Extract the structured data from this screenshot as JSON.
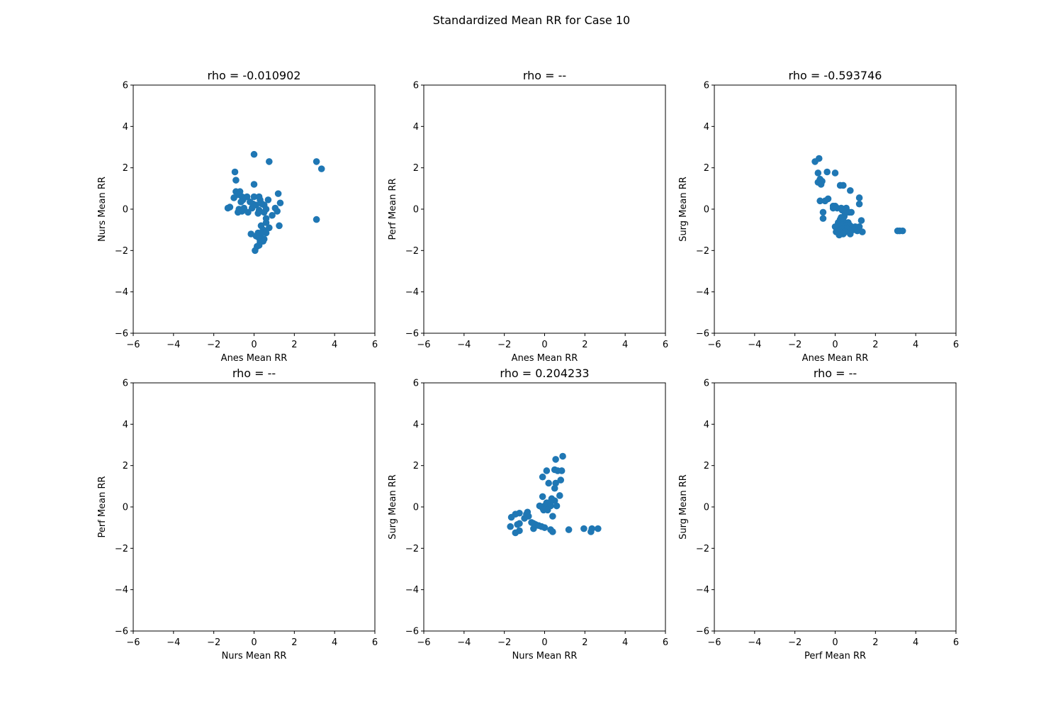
{
  "figure": {
    "title": "Standardized Mean RR for Case 10"
  },
  "colors": {
    "marker": "#1f77b4",
    "axes": "#000000",
    "background": "#ffffff"
  },
  "chart_data": [
    {
      "type": "scatter",
      "title": "rho = -0.010902",
      "xlabel": "Anes Mean RR",
      "ylabel": "Nurs Mean RR",
      "xlim": [
        -6,
        6
      ],
      "ylim": [
        -6,
        6
      ],
      "xticks": [
        "−6",
        "−4",
        "−2",
        "0",
        "2",
        "4",
        "6"
      ],
      "yticks": [
        "−6",
        "−4",
        "−2",
        "0",
        "2",
        "4",
        "6"
      ],
      "grid": false,
      "points": [
        [
          0.0,
          2.65
        ],
        [
          0.75,
          2.3
        ],
        [
          3.1,
          2.3
        ],
        [
          3.35,
          1.95
        ],
        [
          -0.95,
          1.8
        ],
        [
          -0.9,
          1.4
        ],
        [
          0.0,
          1.2
        ],
        [
          -0.9,
          0.85
        ],
        [
          -0.7,
          0.85
        ],
        [
          -0.8,
          0.7
        ],
        [
          -1.0,
          0.55
        ],
        [
          -0.6,
          0.6
        ],
        [
          -0.35,
          0.6
        ],
        [
          0.0,
          0.6
        ],
        [
          0.25,
          0.6
        ],
        [
          -0.55,
          0.45
        ],
        [
          -0.65,
          0.35
        ],
        [
          0.3,
          0.45
        ],
        [
          0.7,
          0.45
        ],
        [
          1.2,
          0.75
        ],
        [
          -0.2,
          0.35
        ],
        [
          0.4,
          0.25
        ],
        [
          1.3,
          0.3
        ],
        [
          -0.05,
          0.25
        ],
        [
          0.1,
          0.2
        ],
        [
          0.5,
          0.2
        ],
        [
          1.05,
          0.05
        ],
        [
          -1.2,
          0.1
        ],
        [
          -1.3,
          0.05
        ],
        [
          -0.75,
          0.0
        ],
        [
          -0.5,
          0.05
        ],
        [
          -0.1,
          0.05
        ],
        [
          0.25,
          -0.05
        ],
        [
          0.6,
          0.0
        ],
        [
          -0.6,
          -0.1
        ],
        [
          -0.3,
          -0.15
        ],
        [
          -0.8,
          -0.15
        ],
        [
          0.2,
          -0.2
        ],
        [
          0.5,
          -0.15
        ],
        [
          1.15,
          -0.1
        ],
        [
          0.9,
          -0.3
        ],
        [
          0.6,
          -0.45
        ],
        [
          0.6,
          -0.65
        ],
        [
          3.1,
          -0.5
        ],
        [
          0.35,
          -0.8
        ],
        [
          0.75,
          -0.9
        ],
        [
          1.25,
          -0.8
        ],
        [
          0.45,
          -1.0
        ],
        [
          0.55,
          -1.1
        ],
        [
          0.6,
          -1.15
        ],
        [
          -0.15,
          -1.2
        ],
        [
          0.2,
          -1.15
        ],
        [
          0.35,
          -1.2
        ],
        [
          0.1,
          -1.3
        ],
        [
          0.25,
          -1.4
        ],
        [
          0.35,
          -1.45
        ],
        [
          0.5,
          -1.45
        ],
        [
          0.3,
          -1.6
        ],
        [
          0.45,
          -1.55
        ],
        [
          0.15,
          -1.8
        ],
        [
          0.05,
          -2.0
        ],
        [
          0.25,
          -1.75
        ]
      ]
    },
    {
      "type": "scatter",
      "title": "rho = --",
      "xlabel": "Anes Mean RR",
      "ylabel": "Perf Mean RR",
      "xlim": [
        -6,
        6
      ],
      "ylim": [
        -6,
        6
      ],
      "xticks": [
        "−6",
        "−4",
        "−2",
        "0",
        "2",
        "4",
        "6"
      ],
      "yticks": [
        "−6",
        "−4",
        "−2",
        "0",
        "2",
        "4",
        "6"
      ],
      "grid": false,
      "points": []
    },
    {
      "type": "scatter",
      "title": "rho = -0.593746",
      "xlabel": "Anes Mean RR",
      "ylabel": "Surg Mean RR",
      "xlim": [
        -6,
        6
      ],
      "ylim": [
        -6,
        6
      ],
      "xticks": [
        "−6",
        "−4",
        "−2",
        "0",
        "2",
        "4",
        "6"
      ],
      "yticks": [
        "−6",
        "−4",
        "−2",
        "0",
        "2",
        "4",
        "6"
      ],
      "grid": false,
      "points": [
        [
          -0.8,
          2.45
        ],
        [
          -1.0,
          2.3
        ],
        [
          -0.85,
          1.75
        ],
        [
          -0.4,
          1.8
        ],
        [
          0.0,
          1.75
        ],
        [
          -0.75,
          1.45
        ],
        [
          -0.85,
          1.3
        ],
        [
          -0.65,
          1.35
        ],
        [
          -0.7,
          1.2
        ],
        [
          0.25,
          1.15
        ],
        [
          0.4,
          1.15
        ],
        [
          0.75,
          0.9
        ],
        [
          1.2,
          0.55
        ],
        [
          -0.35,
          0.5
        ],
        [
          -0.5,
          0.4
        ],
        [
          -0.75,
          0.4
        ],
        [
          1.2,
          0.25
        ],
        [
          -0.1,
          0.15
        ],
        [
          0.0,
          0.15
        ],
        [
          0.1,
          0.05
        ],
        [
          -0.1,
          0.05
        ],
        [
          0.3,
          0.05
        ],
        [
          0.55,
          0.05
        ],
        [
          0.35,
          -0.05
        ],
        [
          -0.6,
          -0.15
        ],
        [
          0.7,
          -0.15
        ],
        [
          0.5,
          -0.2
        ],
        [
          0.8,
          -0.15
        ],
        [
          0.45,
          -0.35
        ],
        [
          0.3,
          -0.4
        ],
        [
          -0.6,
          -0.45
        ],
        [
          0.25,
          -0.5
        ],
        [
          0.4,
          -0.55
        ],
        [
          1.3,
          -0.55
        ],
        [
          0.15,
          -0.65
        ],
        [
          0.65,
          -0.65
        ],
        [
          0.2,
          -0.8
        ],
        [
          0.35,
          -0.75
        ],
        [
          0.55,
          -0.8
        ],
        [
          0.75,
          -0.8
        ],
        [
          0.0,
          -0.85
        ],
        [
          1.0,
          -0.85
        ],
        [
          1.2,
          -0.85
        ],
        [
          0.4,
          -0.95
        ],
        [
          0.6,
          -0.95
        ],
        [
          0.2,
          -1.05
        ],
        [
          0.9,
          -1.0
        ],
        [
          0.05,
          -1.1
        ],
        [
          0.5,
          -1.1
        ],
        [
          1.1,
          -1.05
        ],
        [
          3.1,
          -1.05
        ],
        [
          3.2,
          -1.05
        ],
        [
          3.35,
          -1.05
        ],
        [
          0.25,
          -1.15
        ],
        [
          0.4,
          -1.2
        ],
        [
          0.75,
          -1.2
        ],
        [
          1.35,
          -1.1
        ],
        [
          0.2,
          -1.25
        ]
      ]
    },
    {
      "type": "scatter",
      "title": "rho = --",
      "xlabel": "Nurs Mean RR",
      "ylabel": "Perf Mean RR",
      "xlim": [
        -6,
        6
      ],
      "ylim": [
        -6,
        6
      ],
      "xticks": [
        "−6",
        "−4",
        "−2",
        "0",
        "2",
        "4",
        "6"
      ],
      "yticks": [
        "−6",
        "−4",
        "−2",
        "0",
        "2",
        "4",
        "6"
      ],
      "grid": false,
      "points": []
    },
    {
      "type": "scatter",
      "title": "rho = 0.204233",
      "xlabel": "Nurs Mean RR",
      "ylabel": "Surg Mean RR",
      "xlim": [
        -6,
        6
      ],
      "ylim": [
        -6,
        6
      ],
      "xticks": [
        "−6",
        "−4",
        "−2",
        "0",
        "2",
        "4",
        "6"
      ],
      "yticks": [
        "−6",
        "−4",
        "−2",
        "0",
        "2",
        "4",
        "6"
      ],
      "grid": false,
      "points": [
        [
          0.9,
          2.45
        ],
        [
          0.55,
          2.3
        ],
        [
          0.1,
          1.75
        ],
        [
          0.5,
          1.8
        ],
        [
          0.65,
          1.75
        ],
        [
          0.85,
          1.75
        ],
        [
          -0.1,
          1.45
        ],
        [
          0.2,
          1.15
        ],
        [
          0.55,
          1.15
        ],
        [
          0.8,
          1.3
        ],
        [
          0.5,
          0.9
        ],
        [
          0.75,
          0.55
        ],
        [
          -0.1,
          0.5
        ],
        [
          0.35,
          0.4
        ],
        [
          0.3,
          0.25
        ],
        [
          0.1,
          0.2
        ],
        [
          0.5,
          0.3
        ],
        [
          -0.25,
          0.05
        ],
        [
          0.6,
          0.05
        ],
        [
          0.0,
          0.05
        ],
        [
          -0.1,
          -0.05
        ],
        [
          0.3,
          0.05
        ],
        [
          0.05,
          -0.1
        ],
        [
          -0.05,
          -0.15
        ],
        [
          0.15,
          -0.15
        ],
        [
          0.4,
          -0.45
        ],
        [
          -1.25,
          -0.3
        ],
        [
          -1.45,
          -0.35
        ],
        [
          -0.85,
          -0.25
        ],
        [
          -1.65,
          -0.5
        ],
        [
          -0.9,
          -0.35
        ],
        [
          -0.8,
          -0.45
        ],
        [
          -1.0,
          -0.55
        ],
        [
          -1.25,
          -0.8
        ],
        [
          -1.35,
          -0.85
        ],
        [
          -0.65,
          -0.75
        ],
        [
          -0.45,
          -0.85
        ],
        [
          -0.55,
          -0.8
        ],
        [
          -0.3,
          -0.9
        ],
        [
          -0.15,
          -0.95
        ],
        [
          0.0,
          -1.0
        ],
        [
          -1.7,
          -0.95
        ],
        [
          -0.55,
          -1.05
        ],
        [
          0.3,
          -1.1
        ],
        [
          1.2,
          -1.1
        ],
        [
          1.95,
          -1.05
        ],
        [
          2.35,
          -1.05
        ],
        [
          2.65,
          -1.05
        ],
        [
          -1.25,
          -1.15
        ],
        [
          0.4,
          -1.2
        ],
        [
          2.3,
          -1.2
        ],
        [
          -1.45,
          -1.25
        ]
      ]
    },
    {
      "type": "scatter",
      "title": "rho = --",
      "xlabel": "Perf Mean RR",
      "ylabel": "Surg Mean RR",
      "xlim": [
        -6,
        6
      ],
      "ylim": [
        -6,
        6
      ],
      "xticks": [
        "−6",
        "−4",
        "−2",
        "0",
        "2",
        "4",
        "6"
      ],
      "yticks": [
        "−6",
        "−4",
        "−2",
        "0",
        "2",
        "4",
        "6"
      ],
      "grid": false,
      "points": []
    }
  ]
}
